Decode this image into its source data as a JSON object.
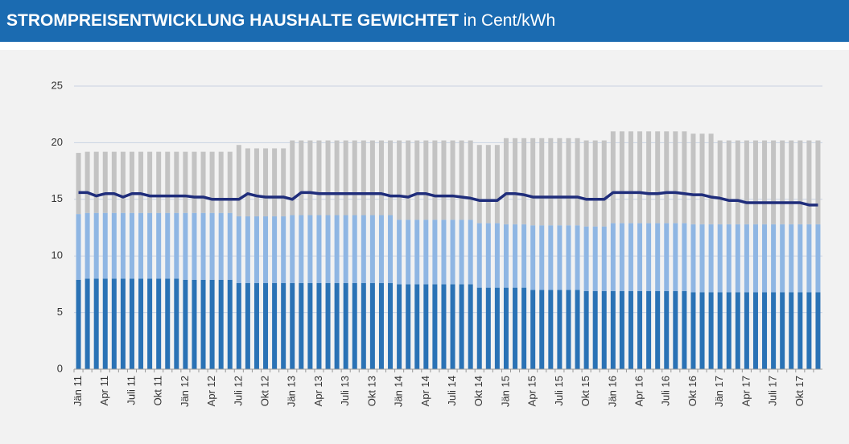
{
  "chart_data": {
    "type": "stacked_bar_line",
    "title": "STROMPREISENTWICKLUNG HAUSHALTE GEWICHTET",
    "subtitle": "in Cent/kWh",
    "categories": [
      "Jän 11",
      null,
      null,
      "Apr 11",
      null,
      null,
      "Juli 11",
      null,
      null,
      "Okt 11",
      null,
      null,
      "Jän 12",
      null,
      null,
      "Apr 12",
      null,
      null,
      "Juli 12",
      null,
      null,
      "Okt 12",
      null,
      null,
      "Jän 13",
      null,
      null,
      "Apr 13",
      null,
      null,
      "Juli 13",
      null,
      null,
      "Okt 13",
      null,
      null,
      "Jän 14",
      null,
      null,
      "Apr 14",
      null,
      null,
      "Juli 14",
      null,
      null,
      "Okt 14",
      null,
      null,
      "Jän 15",
      null,
      null,
      "Apr 15",
      null,
      null,
      "Juli 15",
      null,
      null,
      "Okt 15",
      null,
      null,
      "Jän 16",
      null,
      null,
      "Apr 16",
      null,
      null,
      "Juli 16",
      null,
      null,
      "Okt 16",
      null,
      null,
      "Jän 17",
      null,
      null,
      "Apr 17",
      null,
      null,
      "Juli 17",
      null,
      null,
      "Okt 17",
      null,
      null
    ],
    "series": [
      {
        "kind": "bar",
        "color": "#2a72b5",
        "values": [
          7.9,
          8.0,
          8.0,
          8.0,
          8.0,
          8.0,
          8.0,
          8.0,
          8.0,
          8.0,
          8.0,
          8.0,
          7.9,
          7.9,
          7.9,
          7.9,
          7.9,
          7.9,
          7.6,
          7.6,
          7.6,
          7.6,
          7.6,
          7.6,
          7.6,
          7.6,
          7.6,
          7.6,
          7.6,
          7.6,
          7.6,
          7.6,
          7.6,
          7.6,
          7.6,
          7.6,
          7.5,
          7.5,
          7.5,
          7.5,
          7.5,
          7.5,
          7.5,
          7.5,
          7.5,
          7.2,
          7.2,
          7.2,
          7.2,
          7.2,
          7.2,
          7.0,
          7.0,
          7.0,
          7.0,
          7.0,
          7.0,
          6.9,
          6.9,
          6.9,
          6.9,
          6.9,
          6.9,
          6.9,
          6.9,
          6.9,
          6.9,
          6.9,
          6.9,
          6.8,
          6.8,
          6.8,
          6.8,
          6.8,
          6.8,
          6.8,
          6.8,
          6.8,
          6.8,
          6.8,
          6.8,
          6.8,
          6.8,
          6.8
        ]
      },
      {
        "kind": "bar",
        "color": "#8fb6e3",
        "values": [
          5.8,
          5.8,
          5.8,
          5.8,
          5.8,
          5.8,
          5.8,
          5.8,
          5.8,
          5.8,
          5.8,
          5.8,
          5.9,
          5.9,
          5.9,
          5.9,
          5.9,
          5.9,
          5.9,
          5.9,
          5.9,
          5.9,
          5.9,
          5.9,
          6.0,
          6.0,
          6.0,
          6.0,
          6.0,
          6.0,
          6.0,
          6.0,
          6.0,
          6.0,
          6.0,
          6.0,
          5.7,
          5.7,
          5.7,
          5.7,
          5.7,
          5.7,
          5.7,
          5.7,
          5.7,
          5.7,
          5.7,
          5.7,
          5.6,
          5.6,
          5.6,
          5.7,
          5.7,
          5.7,
          5.7,
          5.7,
          5.7,
          5.7,
          5.7,
          5.7,
          6.0,
          6.0,
          6.0,
          6.0,
          6.0,
          6.0,
          6.0,
          6.0,
          6.0,
          6.0,
          6.0,
          6.0,
          6.0,
          6.0,
          6.0,
          6.0,
          6.0,
          6.0,
          6.0,
          6.0,
          6.0,
          6.0,
          6.0,
          6.0
        ]
      },
      {
        "kind": "bar",
        "color": "#c3c3c3",
        "values": [
          5.4,
          5.4,
          5.4,
          5.4,
          5.4,
          5.4,
          5.4,
          5.4,
          5.4,
          5.4,
          5.4,
          5.4,
          5.4,
          5.4,
          5.4,
          5.4,
          5.4,
          5.4,
          6.3,
          6.0,
          6.0,
          6.0,
          6.0,
          6.0,
          6.6,
          6.6,
          6.6,
          6.6,
          6.6,
          6.6,
          6.6,
          6.6,
          6.6,
          6.6,
          6.6,
          6.6,
          7.0,
          7.0,
          7.0,
          7.0,
          7.0,
          7.0,
          7.0,
          7.0,
          7.0,
          6.9,
          6.9,
          6.9,
          7.6,
          7.6,
          7.6,
          7.7,
          7.7,
          7.7,
          7.7,
          7.7,
          7.7,
          7.6,
          7.6,
          7.6,
          8.1,
          8.1,
          8.1,
          8.1,
          8.1,
          8.1,
          8.1,
          8.1,
          8.1,
          8.0,
          8.0,
          8.0,
          7.4,
          7.4,
          7.4,
          7.4,
          7.4,
          7.4,
          7.4,
          7.4,
          7.4,
          7.4,
          7.4,
          7.4
        ]
      },
      {
        "kind": "line",
        "color": "#1f2d7b",
        "values": [
          15.6,
          15.6,
          15.3,
          15.5,
          15.5,
          15.2,
          15.5,
          15.5,
          15.3,
          15.3,
          15.3,
          15.3,
          15.3,
          15.2,
          15.2,
          15.0,
          15.0,
          15.0,
          15.0,
          15.5,
          15.3,
          15.2,
          15.2,
          15.2,
          15.0,
          15.6,
          15.6,
          15.5,
          15.5,
          15.5,
          15.5,
          15.5,
          15.5,
          15.5,
          15.5,
          15.3,
          15.3,
          15.2,
          15.5,
          15.5,
          15.3,
          15.3,
          15.3,
          15.2,
          15.1,
          14.9,
          14.9,
          14.9,
          15.5,
          15.5,
          15.4,
          15.2,
          15.2,
          15.2,
          15.2,
          15.2,
          15.2,
          15.0,
          15.0,
          15.0,
          15.6,
          15.6,
          15.6,
          15.6,
          15.5,
          15.5,
          15.6,
          15.6,
          15.5,
          15.4,
          15.4,
          15.2,
          15.1,
          14.9,
          14.9,
          14.7,
          14.7,
          14.7,
          14.7,
          14.7,
          14.7,
          14.7,
          14.5,
          14.5
        ]
      }
    ],
    "ylim": [
      0,
      25
    ],
    "yticks": [
      0,
      5,
      10,
      15,
      20,
      25
    ],
    "grid": true
  }
}
